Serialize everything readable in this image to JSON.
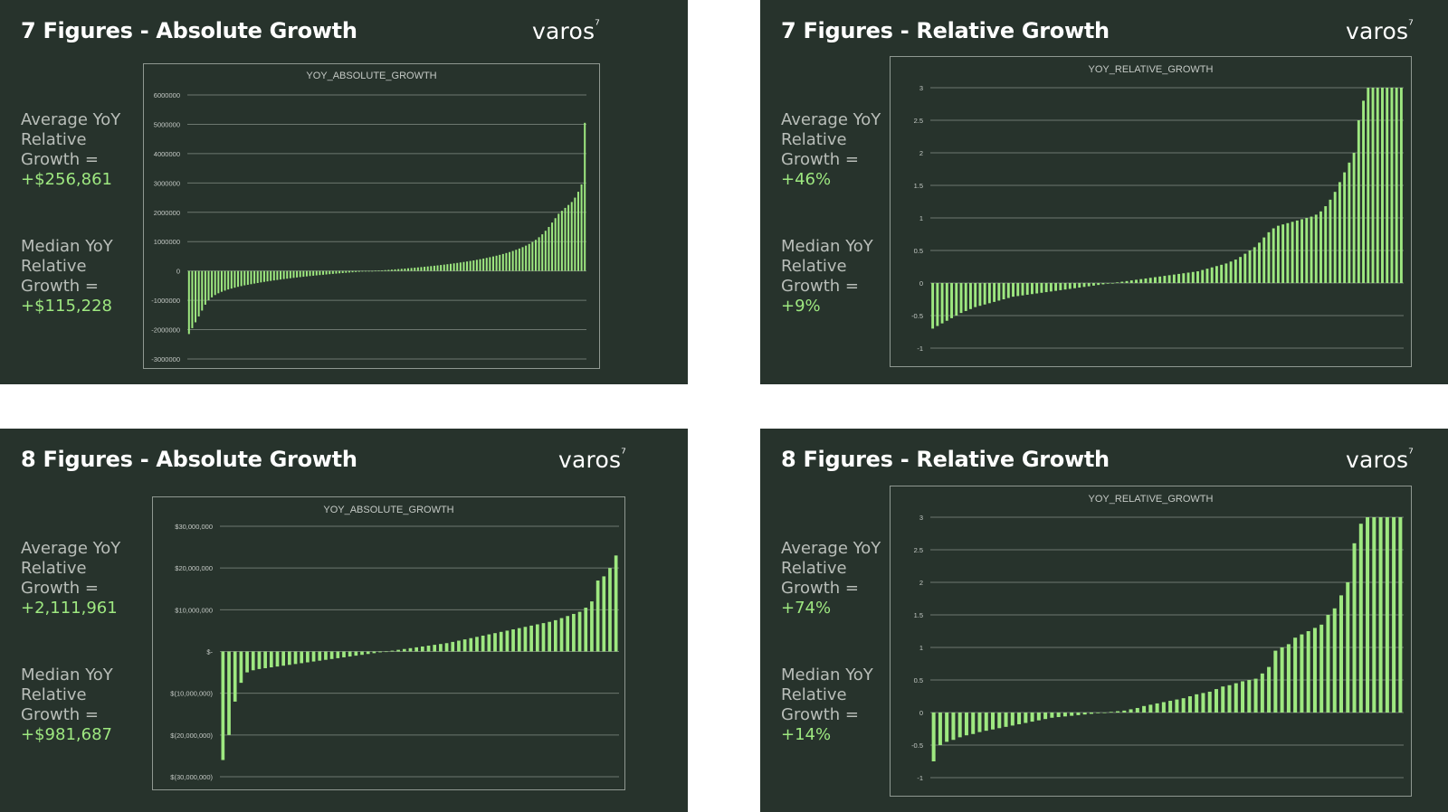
{
  "colors": {
    "panel_bg": "#27332c",
    "bar": "#9ee880",
    "accent_text": "#9ee880",
    "label_text": "#b9beb9",
    "grid": "#6d776f"
  },
  "panels": [
    {
      "title": "7 Figures - Absolute Growth",
      "logo": "varos",
      "logo_mark": "⁷",
      "avg_label": "Average YoY Relative Growth =",
      "avg_value": "+$256,861",
      "median_label": "Median YoY Relative Growth =",
      "median_value": "+$115,228"
    },
    {
      "title": "7 Figures - Relative Growth",
      "logo": "varos",
      "logo_mark": "⁷",
      "avg_label": "Average YoY Relative Growth =",
      "avg_value": "+46%",
      "median_label": "Median YoY Relative Growth =",
      "median_value": "+9%"
    },
    {
      "title": "8 Figures - Absolute Growth",
      "logo": "varos",
      "logo_mark": "⁷",
      "avg_label": "Average YoY Relative Growth =",
      "avg_value": "+2,111,961",
      "median_label": "Median YoY Relative Growth =",
      "median_value": "+$981,687"
    },
    {
      "title": "8 Figures - Relative Growth",
      "logo": "varos",
      "logo_mark": "⁷",
      "avg_label": "Average YoY Relative Growth =",
      "avg_value": "+74%",
      "median_label": "Median YoY Relative Growth =",
      "median_value": "+14%"
    }
  ],
  "chart_data": [
    {
      "type": "bar",
      "title": "YOY_ABSOLUTE_GROWTH",
      "xlabel": "",
      "ylabel": "",
      "ylim": [
        -3000000,
        6000000
      ],
      "grid": true,
      "ticks": [
        {
          "value": 6000000,
          "label": "6000000"
        },
        {
          "value": 5000000,
          "label": "5000000"
        },
        {
          "value": 4000000,
          "label": "4000000"
        },
        {
          "value": 3000000,
          "label": "3000000"
        },
        {
          "value": 2000000,
          "label": "2000000"
        },
        {
          "value": 1000000,
          "label": "1000000"
        },
        {
          "value": 0,
          "label": "0"
        },
        {
          "value": -1000000,
          "label": "-1000000"
        },
        {
          "value": -2000000,
          "label": "-2000000"
        },
        {
          "value": -3000000,
          "label": "-3000000"
        }
      ],
      "values_sorted": [
        -2150000,
        -1950000,
        -1750000,
        -1550000,
        -1350000,
        -1150000,
        -1000000,
        -900000,
        -820000,
        -760000,
        -710000,
        -670000,
        -630000,
        -600000,
        -570000,
        -540000,
        -515000,
        -490000,
        -470000,
        -450000,
        -430000,
        -410000,
        -390000,
        -372000,
        -355000,
        -338000,
        -322000,
        -306000,
        -291000,
        -276000,
        -262000,
        -248000,
        -235000,
        -222000,
        -209000,
        -197000,
        -185000,
        -173000,
        -162000,
        -151000,
        -140000,
        -129000,
        -119000,
        -109000,
        -99000,
        -89000,
        -80000,
        -71000,
        -62000,
        -53000,
        -45000,
        -37000,
        -29000,
        -21000,
        -14000,
        -7000,
        0,
        7000,
        14000,
        21000,
        29000,
        37000,
        45000,
        54000,
        63000,
        72000,
        81000,
        91000,
        101000,
        111000,
        121000,
        132000,
        143000,
        154000,
        166000,
        178000,
        190000,
        203000,
        216000,
        230000,
        244000,
        259000,
        274000,
        290000,
        306000,
        323000,
        341000,
        360000,
        380000,
        401000,
        423000,
        446000,
        470000,
        495000,
        521000,
        549000,
        579000,
        611000,
        645000,
        682000,
        722000,
        765000,
        812000,
        864000,
        922000,
        986000,
        1060000,
        1150000,
        1250000,
        1370000,
        1500000,
        1650000,
        1800000,
        1950000,
        2050000,
        2150000,
        2250000,
        2350000,
        2500000,
        2700000,
        2950000,
        5050000
      ]
    },
    {
      "type": "bar",
      "title": "YOY_RELATIVE_GROWTH",
      "xlabel": "",
      "ylabel": "",
      "ylim": [
        -1,
        3
      ],
      "grid": true,
      "ticks": [
        {
          "value": 3,
          "label": "3"
        },
        {
          "value": 2.5,
          "label": "2.5"
        },
        {
          "value": 2,
          "label": "2"
        },
        {
          "value": 1.5,
          "label": "1.5"
        },
        {
          "value": 1,
          "label": "1"
        },
        {
          "value": 0.5,
          "label": "0.5"
        },
        {
          "value": 0,
          "label": "0"
        },
        {
          "value": -0.5,
          "label": "-0.5"
        },
        {
          "value": -1,
          "label": "-1"
        }
      ],
      "values_sorted": [
        -0.7,
        -0.66,
        -0.62,
        -0.58,
        -0.54,
        -0.5,
        -0.46,
        -0.43,
        -0.4,
        -0.37,
        -0.35,
        -0.33,
        -0.31,
        -0.29,
        -0.27,
        -0.25,
        -0.23,
        -0.21,
        -0.2,
        -0.19,
        -0.18,
        -0.17,
        -0.16,
        -0.15,
        -0.14,
        -0.13,
        -0.12,
        -0.11,
        -0.1,
        -0.09,
        -0.08,
        -0.07,
        -0.06,
        -0.05,
        -0.04,
        -0.03,
        -0.02,
        -0.01,
        0,
        0.01,
        0.02,
        0.03,
        0.04,
        0.05,
        0.06,
        0.07,
        0.08,
        0.09,
        0.1,
        0.11,
        0.12,
        0.13,
        0.14,
        0.15,
        0.16,
        0.17,
        0.18,
        0.2,
        0.22,
        0.24,
        0.26,
        0.28,
        0.3,
        0.33,
        0.36,
        0.4,
        0.45,
        0.5,
        0.55,
        0.62,
        0.7,
        0.78,
        0.84,
        0.88,
        0.9,
        0.92,
        0.94,
        0.96,
        0.98,
        1.0,
        1.02,
        1.05,
        1.1,
        1.18,
        1.28,
        1.4,
        1.55,
        1.7,
        1.85,
        2.0,
        2.5,
        2.8,
        3.0,
        3.0,
        3.0,
        3.0,
        3.0,
        3.0,
        3.0,
        3.0
      ]
    },
    {
      "type": "bar",
      "title": "YOY_ABSOLUTE_GROWTH",
      "xlabel": "",
      "ylabel": "",
      "ylim": [
        -30000000,
        30000000
      ],
      "grid": true,
      "ticks": [
        {
          "value": 30000000,
          "label": "$30,000,000"
        },
        {
          "value": 20000000,
          "label": "$20,000,000"
        },
        {
          "value": 10000000,
          "label": "$10,000,000"
        },
        {
          "value": 0,
          "label": "$-"
        },
        {
          "value": -10000000,
          "label": "$(10,000,000)"
        },
        {
          "value": -20000000,
          "label": "$(20,000,000)"
        },
        {
          "value": -30000000,
          "label": "$(30,000,000)"
        }
      ],
      "values_sorted": [
        -26000000,
        -20000000,
        -12000000,
        -7500000,
        -5000000,
        -4500000,
        -4200000,
        -4000000,
        -3800000,
        -3600000,
        -3400000,
        -3200000,
        -3000000,
        -2800000,
        -2600000,
        -2400000,
        -2200000,
        -2000000,
        -1800000,
        -1600000,
        -1400000,
        -1200000,
        -1000000,
        -800000,
        -600000,
        -400000,
        -200000,
        0,
        200000,
        400000,
        600000,
        800000,
        1000000,
        1200000,
        1400000,
        1600000,
        1800000,
        2000000,
        2300000,
        2600000,
        2900000,
        3200000,
        3500000,
        3800000,
        4100000,
        4400000,
        4700000,
        5000000,
        5300000,
        5600000,
        5900000,
        6200000,
        6500000,
        6800000,
        7100000,
        7500000,
        8000000,
        8500000,
        9000000,
        9500000,
        10500000,
        12000000,
        17000000,
        18000000,
        20000000,
        23000000
      ]
    },
    {
      "type": "bar",
      "title": "YOY_RELATIVE_GROWTH",
      "xlabel": "",
      "ylabel": "",
      "ylim": [
        -1,
        3
      ],
      "grid": true,
      "ticks": [
        {
          "value": 3,
          "label": "3"
        },
        {
          "value": 2.5,
          "label": "2.5"
        },
        {
          "value": 2,
          "label": "2"
        },
        {
          "value": 1.5,
          "label": "1.5"
        },
        {
          "value": 1,
          "label": "1"
        },
        {
          "value": 0.5,
          "label": "0.5"
        },
        {
          "value": 0,
          "label": "0"
        },
        {
          "value": -0.5,
          "label": "-0.5"
        },
        {
          "value": -1,
          "label": "-1"
        }
      ],
      "values_sorted": [
        -0.75,
        -0.5,
        -0.45,
        -0.42,
        -0.38,
        -0.35,
        -0.33,
        -0.3,
        -0.28,
        -0.26,
        -0.24,
        -0.22,
        -0.2,
        -0.18,
        -0.16,
        -0.14,
        -0.12,
        -0.1,
        -0.08,
        -0.07,
        -0.06,
        -0.05,
        -0.04,
        -0.03,
        -0.02,
        -0.01,
        0,
        0.01,
        0.02,
        0.03,
        0.05,
        0.07,
        0.1,
        0.12,
        0.14,
        0.16,
        0.18,
        0.2,
        0.22,
        0.25,
        0.28,
        0.3,
        0.32,
        0.36,
        0.4,
        0.42,
        0.45,
        0.48,
        0.5,
        0.52,
        0.6,
        0.7,
        0.95,
        1.0,
        1.05,
        1.15,
        1.2,
        1.25,
        1.3,
        1.35,
        1.5,
        1.6,
        1.8,
        2.0,
        2.6,
        2.9,
        3.0,
        3.0,
        3.0,
        3.0,
        3.0,
        3.0
      ]
    }
  ]
}
